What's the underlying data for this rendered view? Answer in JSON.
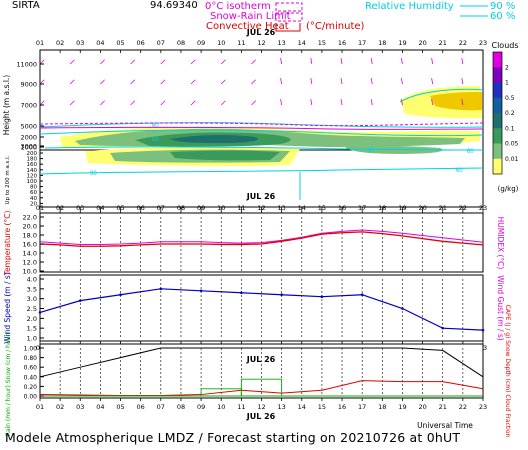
{
  "header": {
    "station": "SIRTA",
    "station_value": "94.69340",
    "legend_isotherm": "0°C isotherm",
    "legend_snow_rain": "Snow-Rain Limit",
    "legend_convective": "Convective Heat",
    "legend_convective_unit": "(°C/minute)",
    "legend_rh": "Relative Humidity",
    "legend_rh_90": "90 %",
    "legend_rh_60": "60 %"
  },
  "date_label": "JUL 26",
  "hours": [
    "01",
    "02",
    "03",
    "04",
    "05",
    "06",
    "07",
    "08",
    "09",
    "10",
    "11",
    "12",
    "13",
    "14",
    "15",
    "16",
    "17",
    "18",
    "19",
    "20",
    "21",
    "22",
    "23"
  ],
  "colors": {
    "magenta": "#e000e0",
    "cyan": "#00d0e0",
    "red": "#e00000",
    "blue": "#0000c0",
    "green": "#00b000"
  },
  "footer_text": "Modele Atmospherique LMDZ / Forecast starting on 20210726 at 0hUT",
  "chart_data": [
    {
      "type": "heatmap",
      "title": "",
      "ylabel": "Height (m a.s.l.)",
      "ylabel_low": "Up to 200 m a.s.l.",
      "y_ticks_upper": [
        "11000",
        "9000",
        "7000",
        "5000",
        "3000",
        "2000",
        "1000"
      ],
      "y_ticks_lower": [
        "200",
        "180",
        "160",
        "140",
        "120",
        "100",
        "80",
        "60",
        "40",
        "20"
      ],
      "colorbar": {
        "title": "Clouds",
        "unit": "(g/kg)",
        "ticks": [
          "0.01",
          "0.05",
          "0.1",
          "0.2",
          "0.5",
          "1",
          "2"
        ]
      },
      "contour_labels": [
        "90",
        "60",
        "90",
        "60",
        "90",
        "60"
      ],
      "isotherm_height_m": 4300,
      "snow_rain_limit_m": 4000
    },
    {
      "type": "line",
      "ylabel": "Temperature (°C)",
      "ylabel_right": "HUMIDEX (°C)",
      "y_ticks": [
        "22.0",
        "20.0",
        "18.0",
        "16.0",
        "14.0",
        "12.0",
        "10.0"
      ],
      "ylim": [
        10,
        22
      ],
      "x": [
        1,
        2,
        3,
        4,
        5,
        6,
        7,
        8,
        9,
        10,
        11,
        12,
        13,
        14,
        15,
        16,
        17,
        18,
        19,
        20,
        21,
        22,
        23
      ],
      "series": [
        {
          "values": [
            16.5,
            16.2,
            15.9,
            15.9,
            16.0,
            16.2,
            16.5,
            16.5,
            16.5,
            16.3,
            16.2,
            16.3,
            16.8,
            17.5,
            18.4,
            18.8,
            19.1,
            18.8,
            18.4,
            17.9,
            17.4,
            16.9,
            16.4
          ]
        },
        {
          "values": [
            16.0,
            15.8,
            15.5,
            15.5,
            15.6,
            15.8,
            16.0,
            16.0,
            16.0,
            15.9,
            15.9,
            16.0,
            16.6,
            17.3,
            18.2,
            18.5,
            18.7,
            18.3,
            17.8,
            17.2,
            16.6,
            16.2,
            15.8
          ]
        }
      ]
    },
    {
      "type": "line",
      "ylabel": "Wind Speed (m / s)",
      "ylabel_right": "Wind Gust (m / s)",
      "y_ticks": [
        "4.0",
        "3.5",
        "3.0",
        "2.5",
        "2.0",
        "1.5",
        "1.0"
      ],
      "ylim": [
        1.0,
        4.0
      ],
      "x": [
        1,
        3,
        5,
        7,
        9,
        11,
        13,
        15,
        17,
        19,
        21,
        23
      ],
      "series": [
        {
          "values": [
            2.3,
            2.9,
            3.2,
            3.5,
            3.4,
            3.3,
            3.2,
            3.1,
            3.2,
            2.5,
            1.5,
            1.4
          ]
        }
      ]
    },
    {
      "type": "line",
      "ylabel": "Rain (mm / hour) Snow (cm / hour)",
      "ylabel_right": "CAPE (J / g) Snow Depth (cm) Cloud Fraction",
      "y_ticks": [
        "1.00",
        "0.80",
        "0.60",
        "0.40",
        "0.20",
        "0.00"
      ],
      "ylim": [
        0,
        1.0
      ],
      "x": [
        1,
        3,
        5,
        7,
        9,
        11,
        13,
        15,
        17,
        19,
        21,
        23
      ],
      "series": [
        {
          "values": [
            0.4,
            0.6,
            0.8,
            1.0,
            1.0,
            1.0,
            1.0,
            1.0,
            1.0,
            1.0,
            0.95,
            0.4
          ]
        },
        {
          "values": [
            0.03,
            0.02,
            0.01,
            0.01,
            0.03,
            0.12,
            0.06,
            0.12,
            0.32,
            0.3,
            0.3,
            0.15
          ]
        },
        {
          "values": [
            0.0,
            0.0,
            0.0,
            0.0,
            0.15,
            0.35,
            0.0,
            0.0,
            0.0,
            0.0,
            0.0,
            0.0
          ]
        }
      ],
      "xlabel": "Universal Time"
    }
  ]
}
